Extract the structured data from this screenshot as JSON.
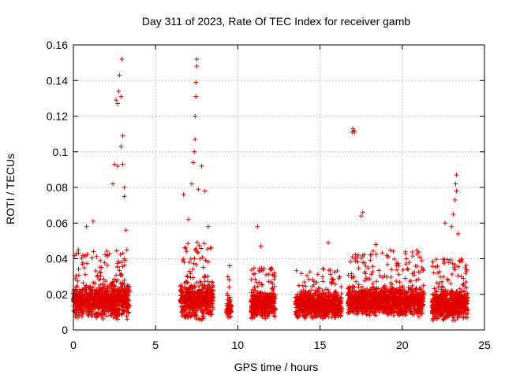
{
  "chart_data": {
    "type": "scatter",
    "title": "Day 311 of 2023, Rate Of TEC Index for receiver gamb",
    "xlabel": "GPS time / hours",
    "ylabel": "ROTI / TECUs",
    "xlim": [
      0,
      25
    ],
    "ylim": [
      0,
      0.16
    ],
    "xticks": [
      "0",
      "5",
      "10",
      "15",
      "20",
      "25"
    ],
    "yticks": [
      "0",
      "0.02",
      "0.04",
      "0.06",
      "0.08",
      "0.1",
      "0.12",
      "0.14",
      "0.16"
    ],
    "grid": true,
    "marker": "+",
    "color": "#e00000",
    "segments": [
      {
        "start": 0.0,
        "end": 3.4,
        "base": 0.016,
        "spread": 0.01,
        "peak": 0.045
      },
      {
        "start": 6.5,
        "end": 8.5,
        "base": 0.017,
        "spread": 0.012,
        "peak": 0.05
      },
      {
        "start": 9.3,
        "end": 9.6,
        "base": 0.012,
        "spread": 0.006,
        "peak": 0.03
      },
      {
        "start": 10.8,
        "end": 12.3,
        "base": 0.014,
        "spread": 0.008,
        "peak": 0.035
      },
      {
        "start": 13.5,
        "end": 16.3,
        "base": 0.014,
        "spread": 0.008,
        "peak": 0.035
      },
      {
        "start": 16.7,
        "end": 21.3,
        "base": 0.016,
        "spread": 0.009,
        "peak": 0.045
      },
      {
        "start": 21.8,
        "end": 24.0,
        "base": 0.014,
        "spread": 0.009,
        "peak": 0.04
      }
    ],
    "outliers": [
      {
        "x": 0.3,
        "y": 0.045
      },
      {
        "x": 0.8,
        "y": 0.058
      },
      {
        "x": 1.2,
        "y": 0.061
      },
      {
        "x": 2.4,
        "y": 0.082
      },
      {
        "x": 2.5,
        "y": 0.093
      },
      {
        "x": 2.6,
        "y": 0.129
      },
      {
        "x": 2.7,
        "y": 0.127
      },
      {
        "x": 2.75,
        "y": 0.134
      },
      {
        "x": 2.8,
        "y": 0.143
      },
      {
        "x": 2.9,
        "y": 0.131
      },
      {
        "x": 2.95,
        "y": 0.152
      },
      {
        "x": 3.0,
        "y": 0.109
      },
      {
        "x": 2.9,
        "y": 0.103
      },
      {
        "x": 3.0,
        "y": 0.093
      },
      {
        "x": 2.7,
        "y": 0.092
      },
      {
        "x": 3.1,
        "y": 0.08
      },
      {
        "x": 3.1,
        "y": 0.075
      },
      {
        "x": 3.2,
        "y": 0.056
      },
      {
        "x": 6.7,
        "y": 0.076
      },
      {
        "x": 7.0,
        "y": 0.062
      },
      {
        "x": 7.2,
        "y": 0.082
      },
      {
        "x": 7.3,
        "y": 0.094
      },
      {
        "x": 7.35,
        "y": 0.1
      },
      {
        "x": 7.4,
        "y": 0.107
      },
      {
        "x": 7.4,
        "y": 0.12
      },
      {
        "x": 7.45,
        "y": 0.131
      },
      {
        "x": 7.45,
        "y": 0.139
      },
      {
        "x": 7.5,
        "y": 0.148
      },
      {
        "x": 7.5,
        "y": 0.152
      },
      {
        "x": 7.6,
        "y": 0.079
      },
      {
        "x": 7.8,
        "y": 0.092
      },
      {
        "x": 8.0,
        "y": 0.078
      },
      {
        "x": 8.2,
        "y": 0.058
      },
      {
        "x": 9.5,
        "y": 0.036
      },
      {
        "x": 11.2,
        "y": 0.058
      },
      {
        "x": 11.4,
        "y": 0.047
      },
      {
        "x": 15.5,
        "y": 0.049
      },
      {
        "x": 16.95,
        "y": 0.111
      },
      {
        "x": 17.05,
        "y": 0.112
      },
      {
        "x": 17.0,
        "y": 0.113
      },
      {
        "x": 17.1,
        "y": 0.111
      },
      {
        "x": 17.5,
        "y": 0.064
      },
      {
        "x": 17.6,
        "y": 0.066
      },
      {
        "x": 18.4,
        "y": 0.048
      },
      {
        "x": 22.6,
        "y": 0.06
      },
      {
        "x": 23.0,
        "y": 0.058
      },
      {
        "x": 23.1,
        "y": 0.065
      },
      {
        "x": 23.2,
        "y": 0.073
      },
      {
        "x": 23.25,
        "y": 0.082
      },
      {
        "x": 23.3,
        "y": 0.087
      },
      {
        "x": 23.3,
        "y": 0.078
      },
      {
        "x": 23.4,
        "y": 0.054
      }
    ]
  }
}
